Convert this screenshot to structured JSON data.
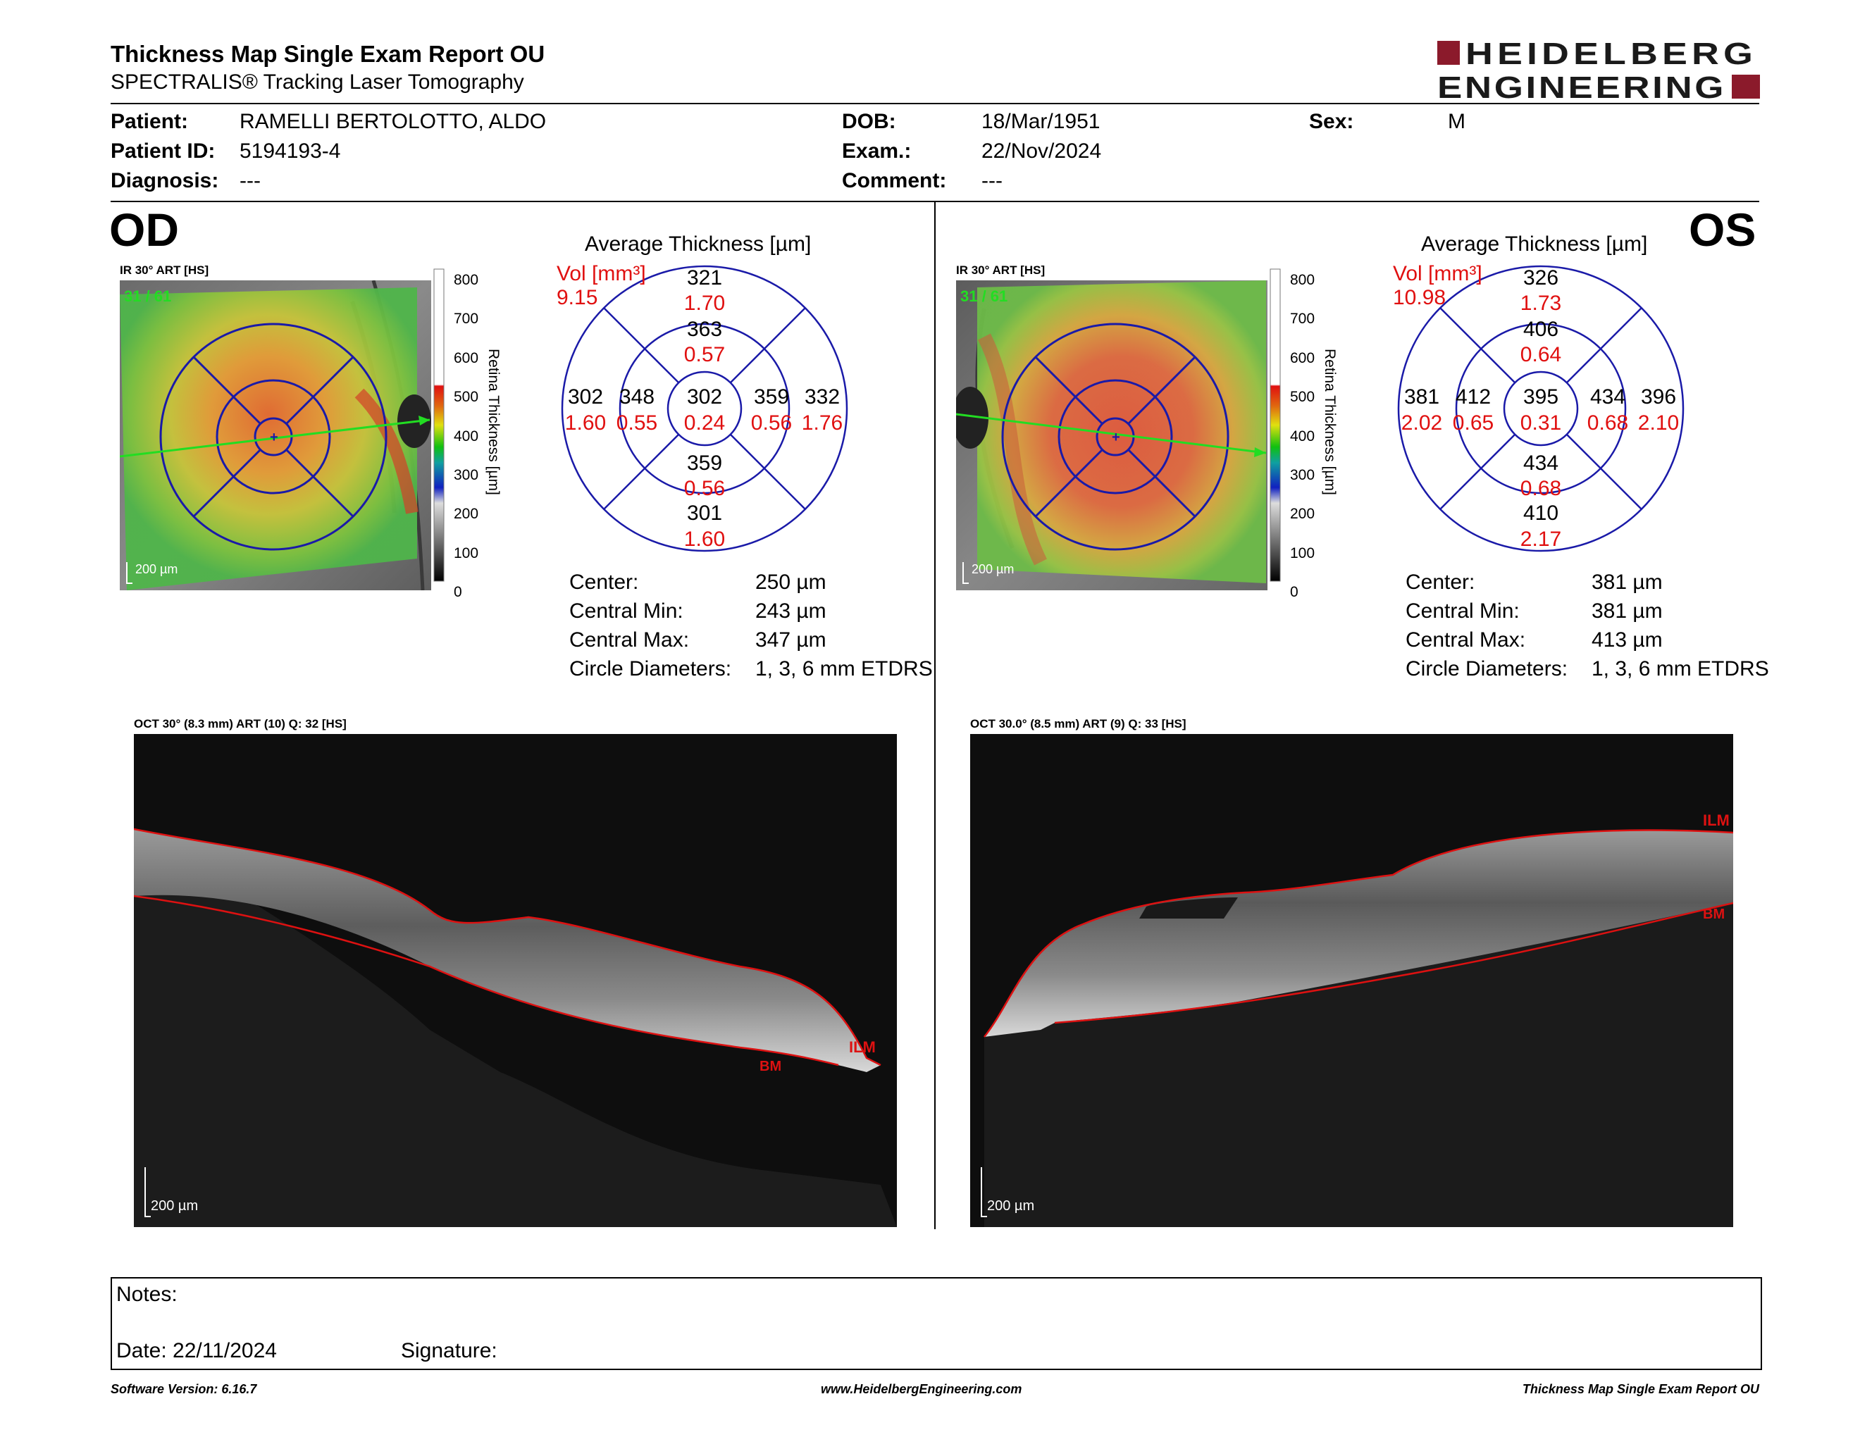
{
  "header": {
    "title": "Thickness Map Single Exam Report OU",
    "subtitle": "SPECTRALIS® Tracking Laser Tomography",
    "logo_line1": "HEIDELBERG",
    "logo_line2": "ENGINEERING",
    "logo_color": "#8b1a2b"
  },
  "patient": {
    "patient_label": "Patient:",
    "patient_value": "RAMELLI BERTOLOTTO, ALDO",
    "id_label": "Patient ID:",
    "id_value": "5194193-4",
    "diagnosis_label": "Diagnosis:",
    "diagnosis_value": "---",
    "dob_label": "DOB:",
    "dob_value": "18/Mar/1951",
    "exam_label": "Exam.:",
    "exam_value": "22/Nov/2024",
    "comment_label": "Comment:",
    "comment_value": "---",
    "sex_label": "Sex:",
    "sex_value": "M"
  },
  "od": {
    "eye": "OD",
    "ir_caption": "IR 30° ART [HS]",
    "frames": "31 / 61",
    "scale": "200 µm",
    "avg_title": "Average Thickness [µm]",
    "vol_label": "Vol [mm³]",
    "vol_total": "9.15",
    "sectors": {
      "center": {
        "t": "302",
        "v": "0.24"
      },
      "inner_top": {
        "t": "363",
        "v": "0.57"
      },
      "inner_left": {
        "t": "348",
        "v": "0.55"
      },
      "inner_right": {
        "t": "359",
        "v": "0.56"
      },
      "inner_bottom": {
        "t": "359",
        "v": "0.56"
      },
      "outer_top": {
        "t": "321",
        "v": "1.70"
      },
      "outer_left": {
        "t": "302",
        "v": "1.60"
      },
      "outer_right": {
        "t": "332",
        "v": "1.76"
      },
      "outer_bottom": {
        "t": "301",
        "v": "1.60"
      }
    },
    "stats": {
      "center_label": "Center:",
      "center_value": "250 µm",
      "min_label": "Central Min:",
      "min_value": "243 µm",
      "max_label": "Central Max:",
      "max_value": "347 µm",
      "circ_label": "Circle Diameters:",
      "circ_value": "1, 3, 6 mm ETDRS"
    },
    "oct_caption": "OCT 30° (8.3 mm) ART (10) Q: 32 [HS]",
    "oct_scale": "200 µm",
    "ilm": "ILM",
    "bm": "BM"
  },
  "os": {
    "eye": "OS",
    "ir_caption": "IR 30° ART [HS]",
    "frames": "31 / 61",
    "scale": "200 µm",
    "avg_title": "Average Thickness [µm]",
    "vol_label": "Vol [mm³]",
    "vol_total": "10.98",
    "sectors": {
      "center": {
        "t": "395",
        "v": "0.31"
      },
      "inner_top": {
        "t": "406",
        "v": "0.64"
      },
      "inner_left": {
        "t": "412",
        "v": "0.65"
      },
      "inner_right": {
        "t": "434",
        "v": "0.68"
      },
      "inner_bottom": {
        "t": "434",
        "v": "0.68"
      },
      "outer_top": {
        "t": "326",
        "v": "1.73"
      },
      "outer_left": {
        "t": "381",
        "v": "2.02"
      },
      "outer_right": {
        "t": "396",
        "v": "2.10"
      },
      "outer_bottom": {
        "t": "410",
        "v": "2.17"
      }
    },
    "stats": {
      "center_label": "Center:",
      "center_value": "381 µm",
      "min_label": "Central Min:",
      "min_value": "381 µm",
      "max_label": "Central Max:",
      "max_value": "413 µm",
      "circ_label": "Circle Diameters:",
      "circ_value": "1, 3, 6 mm ETDRS"
    },
    "oct_caption": "OCT 30.0° (8.5 mm) ART (9) Q: 33 [HS]",
    "oct_scale": "200 µm",
    "ilm": "ILM",
    "bm": "BM"
  },
  "colorbar": {
    "ticks": [
      "800",
      "700",
      "600",
      "500",
      "400",
      "300",
      "200",
      "100",
      "0"
    ],
    "label": "Retina Thickness [µm]"
  },
  "notes": {
    "notes_label": "Notes:",
    "date_label": "Date: 22/11/2024",
    "signature_label": "Signature:"
  },
  "footer": {
    "software": "Software Version: 6.16.7",
    "website": "www.HeidelbergEngineering.com",
    "report_name": "Thickness Map Single Exam Report OU"
  },
  "colors": {
    "etdrs_grid": "#1a1aa8",
    "volume_red": "#e01010",
    "scan_line": "#22dd22",
    "segmentation": "#dd1111"
  }
}
